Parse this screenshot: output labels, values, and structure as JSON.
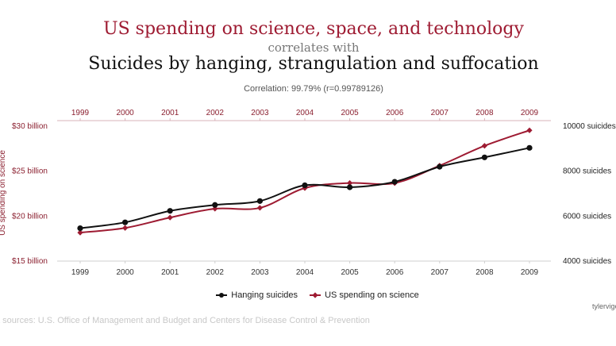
{
  "header": {
    "title_line1": "US spending on science, space, and technology",
    "title_line2": "correlates with",
    "title_line3": "Suicides by hanging, strangulation and suffocation",
    "correlation": "Correlation: 99.79% (r=0.99789126)"
  },
  "colors": {
    "spending": "#9e1b32",
    "suicides": "#111111",
    "axis_text": "#8b2030",
    "right_axis_text": "#222222"
  },
  "chart_data": {
    "type": "line",
    "x": [
      "1999",
      "2000",
      "2001",
      "2002",
      "2003",
      "2004",
      "2005",
      "2006",
      "2007",
      "2008",
      "2009"
    ],
    "series": [
      {
        "name": "Hanging suicides",
        "axis": "right",
        "color": "#111111",
        "marker": "circle",
        "values": [
          5427,
          5688,
          6198,
          6462,
          6635,
          7336,
          7248,
          7491,
          8161,
          8578,
          9000
        ]
      },
      {
        "name": "US spending on science",
        "axis": "left",
        "color": "#9e1b32",
        "marker": "diamond",
        "values": [
          18.079,
          18.594,
          19.753,
          20.734,
          20.831,
          23.029,
          23.597,
          23.584,
          25.525,
          27.731,
          29.449
        ]
      }
    ],
    "ylabel_left": "US spending on science",
    "ylim_left": [
      15,
      30
    ],
    "yticks_left": [
      {
        "value": 30,
        "label": "$30 billion"
      },
      {
        "value": 25,
        "label": "$25 billion"
      },
      {
        "value": 20,
        "label": "$20 billion"
      },
      {
        "value": 15,
        "label": "$15 billion"
      }
    ],
    "ylim_right": [
      4000,
      10000
    ],
    "yticks_right": [
      {
        "value": 10000,
        "label": "10000 suicides"
      },
      {
        "value": 8000,
        "label": "8000 suicides"
      },
      {
        "value": 6000,
        "label": "6000 suicides"
      },
      {
        "value": 4000,
        "label": "4000 suicides"
      }
    ],
    "grid": false,
    "legend": "bottom"
  },
  "legend": {
    "items": [
      {
        "label": "Hanging suicides"
      },
      {
        "label": "US spending on science"
      }
    ]
  },
  "footer": {
    "attribution": "tylervige",
    "sources": "a sources: U.S. Office of Management and Budget and Centers for Disease Control & Prevention"
  }
}
